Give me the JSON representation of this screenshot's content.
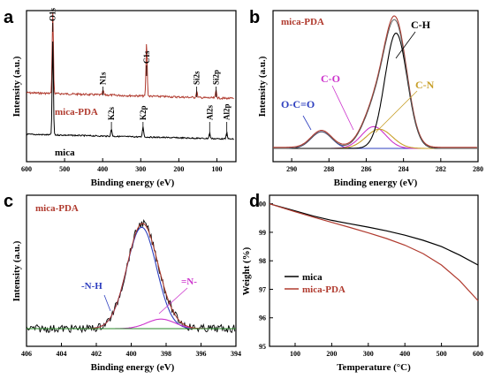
{
  "panels": {
    "a": {
      "letter": "a",
      "xlabel": "Binding energy (eV)",
      "ylabel": "Intensity (a.u.)"
    },
    "b": {
      "letter": "b",
      "xlabel": "Binding energy (eV)",
      "ylabel": "Intensity (a.u.)"
    },
    "c": {
      "letter": "c",
      "xlabel": "Binding energy (eV)",
      "ylabel": "Intensity (a.u.)"
    },
    "d": {
      "letter": "d",
      "xlabel": "Temperature (°C)",
      "ylabel": "Weight (%)"
    }
  },
  "chart_data": [
    {
      "type": "line",
      "panel": "a",
      "xlabel": "Binding energy (eV)",
      "ylabel": "Intensity (a.u.)",
      "xlim": [
        600,
        50
      ],
      "xticks": [
        600,
        500,
        400,
        300,
        200,
        100
      ],
      "series": [
        {
          "name": "mica-PDA",
          "color": "#b03a2e",
          "peaks": [
            {
              "label": "O1s",
              "x": 531
            },
            {
              "label": "N1s",
              "x": 399
            },
            {
              "label": "C1s",
              "x": 284.6
            },
            {
              "label": "Si2s",
              "x": 153
            },
            {
              "label": "Si2p",
              "x": 102
            }
          ]
        },
        {
          "name": "mica",
          "color": "#000000",
          "peaks": [
            {
              "label": "K2s",
              "x": 377
            },
            {
              "label": "K2p",
              "x": 294
            },
            {
              "label": "Al2s",
              "x": 119
            },
            {
              "label": "Al2p",
              "x": 74
            }
          ]
        }
      ],
      "annotations": [
        "O1s",
        "N1s",
        "C1s",
        "Si2s",
        "Si2p",
        "K2s",
        "K2p",
        "Al2s",
        "Al2p"
      ]
    },
    {
      "type": "line",
      "panel": "b",
      "title": "mica-PDA",
      "xlabel": "Binding energy (eV)",
      "ylabel": "Intensity (a.u.)",
      "xlim": [
        291,
        280
      ],
      "xticks": [
        290,
        288,
        286,
        284,
        282,
        280
      ],
      "series": [
        {
          "name": "O-C=O",
          "color": "#2e3fbf",
          "center": 288.4,
          "height": 0.13,
          "width": 0.55
        },
        {
          "name": "C-O",
          "color": "#cc33cc",
          "center": 285.6,
          "height": 0.17,
          "width": 0.65
        },
        {
          "name": "C-N",
          "color": "#c8a02a",
          "center": 285.3,
          "height": 0.15,
          "width": 0.7
        },
        {
          "name": "C-H",
          "color": "#000000",
          "center": 284.4,
          "height": 0.9,
          "width": 0.6
        }
      ]
    },
    {
      "type": "line",
      "panel": "c",
      "title": "mica-PDA",
      "xlabel": "Binding energy (eV)",
      "ylabel": "Intensity (a.u.)",
      "xlim": [
        406,
        394
      ],
      "xticks": [
        406,
        404,
        402,
        400,
        398,
        396,
        394
      ],
      "series": [
        {
          "name": "-N-H",
          "color": "#2e3fbf",
          "center": 399.4,
          "height": 0.85,
          "width": 0.85
        },
        {
          "name": "=N-",
          "color": "#cc33cc",
          "center": 398.3,
          "height": 0.08,
          "width": 0.8
        }
      ]
    },
    {
      "type": "line",
      "panel": "d",
      "xlabel": "Temperature (°C)",
      "ylabel": "Weight (%)",
      "xlim": [
        30,
        600
      ],
      "ylim": [
        95,
        100.3
      ],
      "xticks": [
        100,
        200,
        300,
        400,
        500,
        600
      ],
      "yticks": [
        95,
        96,
        97,
        98,
        99,
        100
      ],
      "legend": "center-left",
      "series": [
        {
          "name": "mica",
          "color": "#000000",
          "x": [
            30,
            100,
            150,
            200,
            250,
            300,
            350,
            400,
            450,
            500,
            550,
            600
          ],
          "y": [
            100.0,
            99.75,
            99.57,
            99.42,
            99.3,
            99.18,
            99.05,
            98.9,
            98.72,
            98.5,
            98.2,
            97.85
          ]
        },
        {
          "name": "mica-PDA",
          "color": "#b03a2e",
          "x": [
            30,
            100,
            150,
            200,
            250,
            300,
            350,
            400,
            450,
            500,
            550,
            600
          ],
          "y": [
            100.0,
            99.72,
            99.53,
            99.35,
            99.17,
            98.98,
            98.78,
            98.55,
            98.25,
            97.85,
            97.3,
            96.6
          ]
        }
      ]
    }
  ]
}
